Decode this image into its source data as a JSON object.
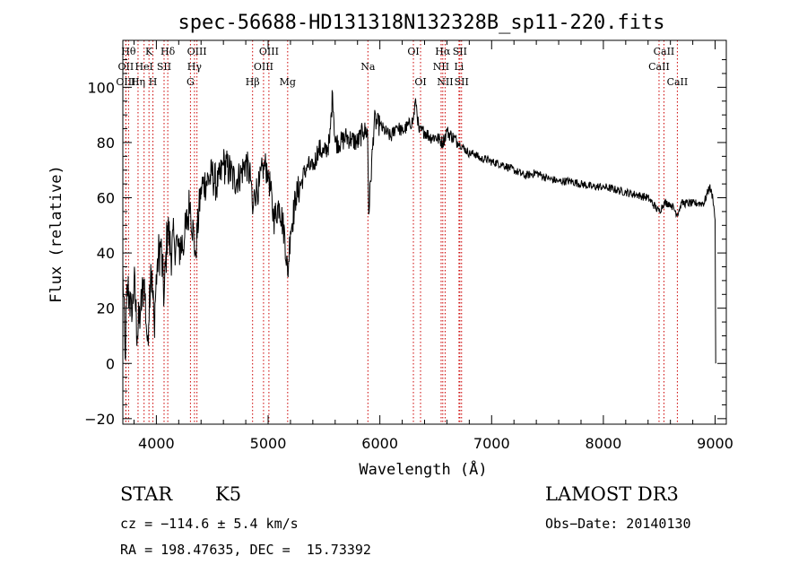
{
  "chart_data": {
    "type": "line",
    "title": "spec-56688-HD131318N132328B_sp11-220.fits",
    "xlabel": "Wavelength (Å)",
    "ylabel": "Flux (relative)",
    "xlim": [
      3700,
      9100
    ],
    "ylim": [
      -22,
      117
    ],
    "xticks": [
      4000,
      5000,
      6000,
      7000,
      8000,
      9000
    ],
    "yticks": [
      -20,
      0,
      20,
      40,
      60,
      80,
      100
    ],
    "series": [
      {
        "name": "spectrum",
        "color": "#000000",
        "x": [
          3700,
          3720,
          3740,
          3760,
          3780,
          3800,
          3830,
          3860,
          3890,
          3920,
          3950,
          3980,
          4010,
          4040,
          4070,
          4100,
          4130,
          4160,
          4200,
          4250,
          4300,
          4350,
          4400,
          4450,
          4500,
          4550,
          4600,
          4650,
          4700,
          4750,
          4800,
          4850,
          4862,
          4880,
          4920,
          4960,
          5000,
          5050,
          5100,
          5150,
          5175,
          5200,
          5250,
          5300,
          5350,
          5400,
          5450,
          5500,
          5550,
          5577,
          5600,
          5650,
          5700,
          5750,
          5800,
          5850,
          5890,
          5900,
          5950,
          6000,
          6050,
          6100,
          6150,
          6200,
          6250,
          6300,
          6320,
          6350,
          6400,
          6450,
          6500,
          6563,
          6600,
          6650,
          6700,
          6750,
          6800,
          6850,
          6900,
          6950,
          7000,
          7100,
          7200,
          7300,
          7400,
          7500,
          7600,
          7700,
          7800,
          7900,
          8000,
          8100,
          8200,
          8300,
          8400,
          8498,
          8542,
          8600,
          8662,
          8700,
          8800,
          8850,
          8900,
          8950,
          8980,
          9000,
          9005
        ],
        "y": [
          35,
          2,
          28,
          24,
          15,
          30,
          10,
          20,
          30,
          8,
          36,
          15,
          38,
          42,
          24,
          50,
          40,
          45,
          42,
          44,
          58,
          40,
          64,
          66,
          68,
          64,
          72,
          70,
          66,
          68,
          73,
          66,
          54,
          62,
          64,
          72,
          70,
          52,
          58,
          46,
          32,
          48,
          60,
          66,
          72,
          70,
          78,
          76,
          80,
          98,
          80,
          80,
          82,
          81,
          80,
          84,
          84,
          54,
          88,
          86,
          84,
          82,
          86,
          84,
          86,
          88,
          96,
          84,
          84,
          82,
          82,
          80,
          84,
          82,
          80,
          78,
          76,
          76,
          74,
          74,
          73,
          72,
          70,
          68,
          69,
          67,
          66,
          66,
          65,
          64,
          64,
          63,
          62,
          61,
          60,
          55,
          58,
          58,
          54,
          58,
          58,
          58,
          58,
          64,
          60,
          52,
          0
        ]
      }
    ],
    "line_labels": [
      {
        "name": "Hθ",
        "wave": 3751,
        "row": 0
      },
      {
        "name": "OII",
        "wave": 3727,
        "row": 1
      },
      {
        "name": "OIII",
        "wave": 3727,
        "row": 2
      },
      {
        "name": "K",
        "wave": 3934,
        "row": 0
      },
      {
        "name": "HeI",
        "wave": 3890,
        "row": 1
      },
      {
        "name": "Hη",
        "wave": 3836,
        "row": 2
      },
      {
        "name": "SII",
        "wave": 4069,
        "row": 1
      },
      {
        "name": "H",
        "wave": 3969,
        "row": 2
      },
      {
        "name": "Hδ",
        "wave": 4102,
        "row": 0
      },
      {
        "name": "OIII",
        "wave": 4363,
        "row": 0
      },
      {
        "name": "Hγ",
        "wave": 4341,
        "row": 1
      },
      {
        "name": "G",
        "wave": 4305,
        "row": 2
      },
      {
        "name": "OIII",
        "wave": 5007,
        "row": 0
      },
      {
        "name": "OIII",
        "wave": 4959,
        "row": 1
      },
      {
        "name": "Hβ",
        "wave": 4861,
        "row": 2
      },
      {
        "name": "Mg",
        "wave": 5175,
        "row": 2
      },
      {
        "name": "Na",
        "wave": 5893,
        "row": 1
      },
      {
        "name": "OI",
        "wave": 6300,
        "row": 0
      },
      {
        "name": "OI",
        "wave": 6364,
        "row": 2
      },
      {
        "name": "Hα",
        "wave": 6563,
        "row": 0
      },
      {
        "name": "SII",
        "wave": 6716,
        "row": 0
      },
      {
        "name": "NII",
        "wave": 6548,
        "row": 1
      },
      {
        "name": "Li",
        "wave": 6708,
        "row": 1
      },
      {
        "name": "NII",
        "wave": 6584,
        "row": 2
      },
      {
        "name": "SII",
        "wave": 6731,
        "row": 2
      },
      {
        "name": "CaII",
        "wave": 8542,
        "row": 0
      },
      {
        "name": "CaII",
        "wave": 8498,
        "row": 1
      },
      {
        "name": "CaII",
        "wave": 8662,
        "row": 2
      }
    ]
  },
  "info": {
    "object_class": "STAR",
    "subclass": "K5",
    "survey": "LAMOST DR3",
    "cz": "cz = −114.6 ± 5.4 km/s",
    "obs_date": "Obs−Date: 20140130",
    "coords": "RA = 198.47635, DEC =  15.73392"
  }
}
